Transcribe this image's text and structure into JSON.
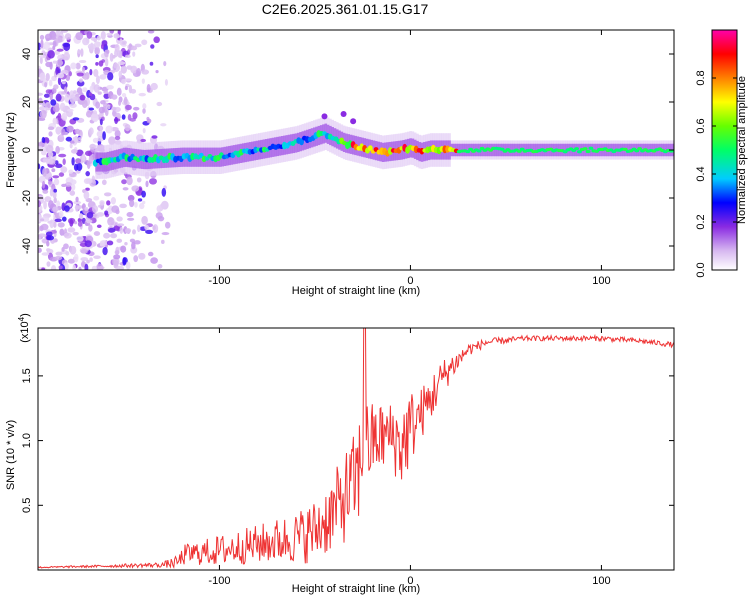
{
  "figure": {
    "title": "C2E6.2025.361.01.15.G17"
  },
  "chart_data": [
    {
      "type": "heatmap",
      "name": "spectrogram",
      "xlabel": "Height of straight line (km)",
      "ylabel": "Frequency (Hz)",
      "xlim": [
        -195,
        138
      ],
      "ylim": [
        -50,
        50
      ],
      "xticks": [
        -100,
        0,
        100
      ],
      "xtick_labels": [
        "-100",
        "0",
        "100"
      ],
      "yticks": [
        -40,
        -20,
        0,
        20,
        40
      ],
      "ytick_labels": [
        "-40",
        "-20",
        "0",
        "20",
        "40"
      ],
      "colorbar": {
        "label": "Normalized spectral amplitude",
        "range": [
          0.0,
          1.0
        ],
        "ticks": [
          0.0,
          0.2,
          0.4,
          0.6,
          0.8
        ],
        "tick_labels": [
          "0.0",
          "0.2",
          "0.4",
          "0.6",
          "0.8"
        ],
        "colormap": [
          "#ffffff",
          "#d7b8f0",
          "#8a2be2",
          "#0000ff",
          "#00ccff",
          "#00ff66",
          "#66ff00",
          "#ffff00",
          "#ff8000",
          "#ff0000",
          "#ff00aa"
        ]
      },
      "ridge": {
        "x": [
          -160,
          -150,
          -140,
          -120,
          -100,
          -80,
          -60,
          -45,
          -35,
          -25,
          -15,
          -5,
          0,
          5,
          10,
          20,
          30,
          60,
          100,
          138
        ],
        "y": [
          -5,
          -3,
          -4,
          -3,
          -3,
          0,
          3,
          7,
          3,
          1,
          -1,
          0,
          1,
          -1,
          0,
          0,
          0,
          0,
          0,
          0
        ]
      }
    },
    {
      "type": "line",
      "name": "snr",
      "xlabel": "Height of straight line (km)",
      "ylabel": "SNR (10 * v/v)",
      "y_multiplier": "(x10",
      "y_multiplier_exp": "4",
      "y_multiplier_close": ")",
      "xlim": [
        -195,
        138
      ],
      "ylim": [
        0,
        1.87
      ],
      "xticks": [
        -100,
        0,
        100
      ],
      "xtick_labels": [
        "-100",
        "0",
        "100"
      ],
      "yticks": [
        0.5,
        1.0,
        1.5
      ],
      "ytick_labels": [
        "0.5",
        "1.0",
        "1.5"
      ],
      "color": "#ee3333",
      "envelope": {
        "x": [
          -195,
          -160,
          -130,
          -122,
          -118,
          -100,
          -80,
          -60,
          -50,
          -40,
          -35,
          -28,
          -25,
          -20,
          -10,
          -5,
          0,
          5,
          10,
          15,
          20,
          25,
          30,
          40,
          60,
          80,
          100,
          120,
          138
        ],
        "base": [
          0.02,
          0.03,
          0.04,
          0.06,
          0.12,
          0.15,
          0.2,
          0.25,
          0.3,
          0.45,
          0.55,
          0.7,
          0.9,
          1.0,
          1.05,
          0.95,
          1.1,
          1.2,
          1.3,
          1.45,
          1.55,
          1.62,
          1.7,
          1.76,
          1.79,
          1.79,
          1.79,
          1.77,
          1.74
        ],
        "noise": [
          0.005,
          0.01,
          0.02,
          0.05,
          0.08,
          0.12,
          0.15,
          0.2,
          0.25,
          0.3,
          0.35,
          0.4,
          0.45,
          0.3,
          0.25,
          0.35,
          0.3,
          0.2,
          0.2,
          0.15,
          0.12,
          0.08,
          0.05,
          0.03,
          0.02,
          0.02,
          0.02,
          0.02,
          0.02
        ]
      },
      "peak": {
        "x": -24,
        "y": 1.87
      }
    }
  ]
}
